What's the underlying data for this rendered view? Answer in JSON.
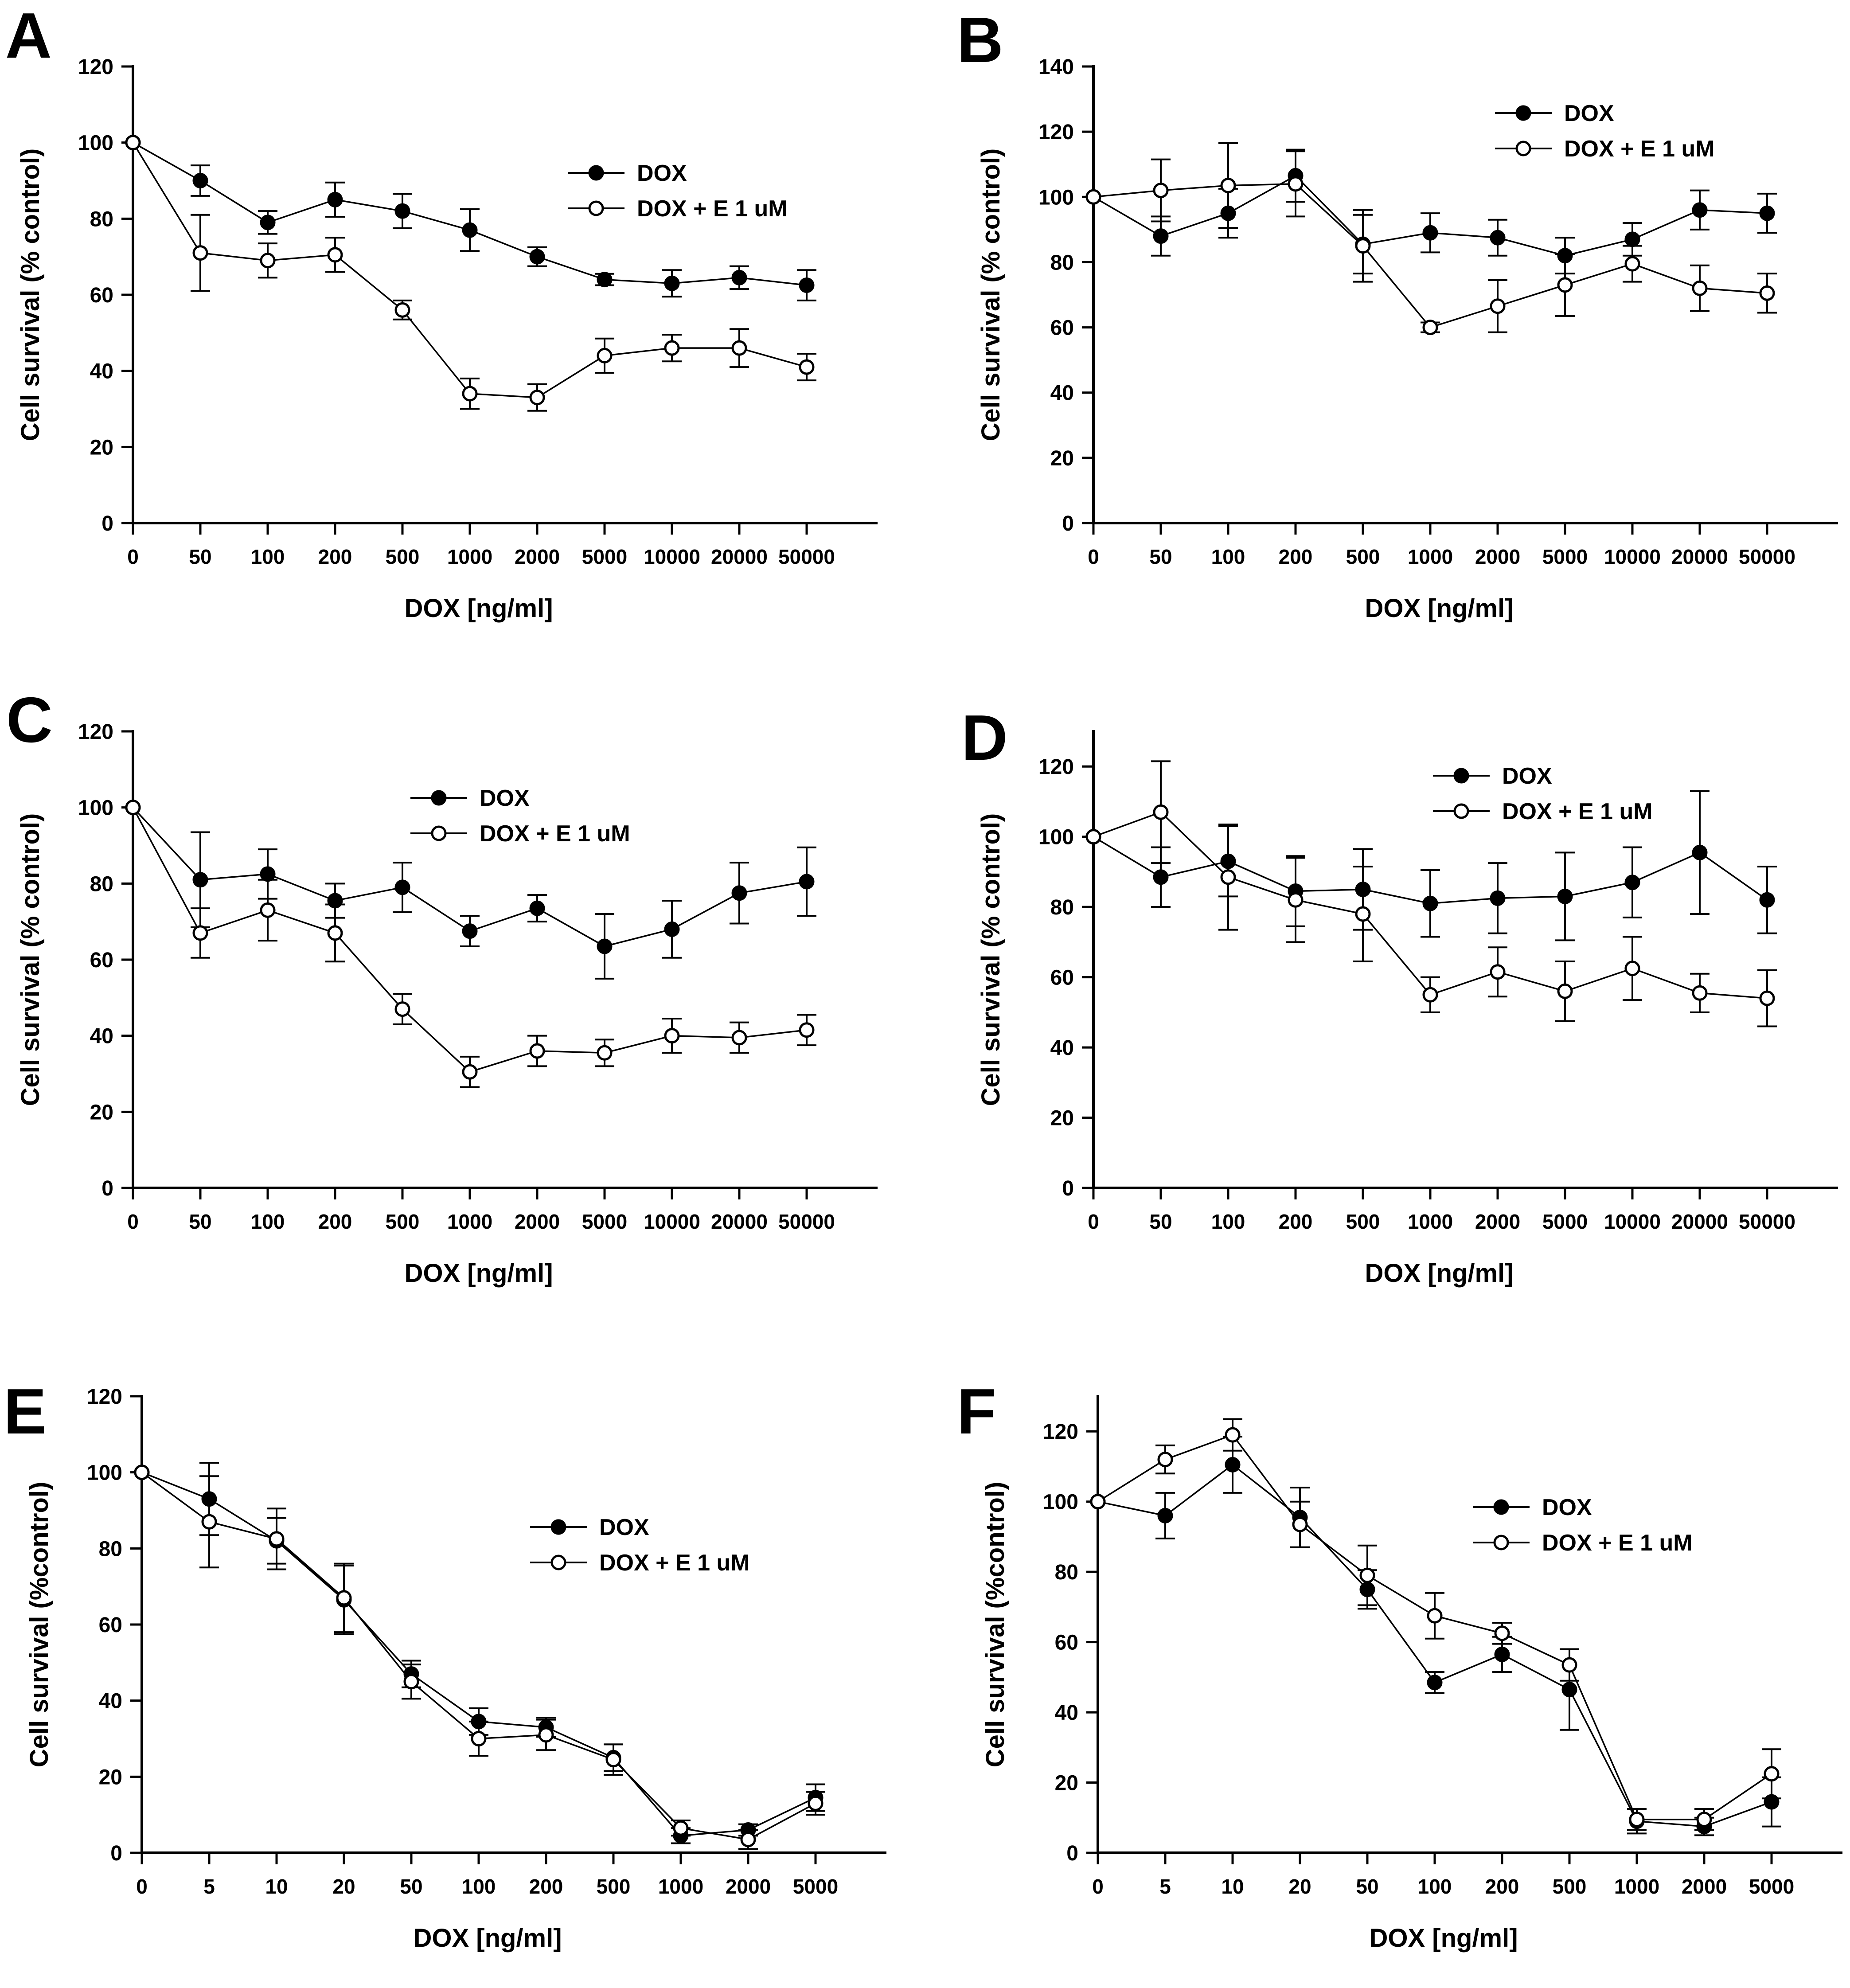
{
  "colors": {
    "foreground": "#000000",
    "background": "#ffffff"
  },
  "chart_data": [
    {
      "type": "line",
      "panel": "A",
      "xlabel": "DOX [ng/ml]",
      "ylabel": "Cell survival (% control)",
      "categories": [
        "0",
        "50",
        "100",
        "200",
        "500",
        "1000",
        "2000",
        "5000",
        "10000",
        "20000",
        "50000"
      ],
      "ylim": [
        0,
        120
      ],
      "yticks": [
        0,
        20,
        40,
        60,
        80,
        100,
        120
      ],
      "grid": false,
      "legend_position": "upper-right-inside",
      "series": [
        {
          "name": "DOX",
          "marker": "filled-circle",
          "values": [
            100,
            90,
            79,
            85,
            82,
            77,
            70,
            64,
            63,
            64.5,
            62.5
          ],
          "errors": [
            0,
            4,
            3,
            4.5,
            4.5,
            5.5,
            2.5,
            1.5,
            3.5,
            3,
            4
          ]
        },
        {
          "name": "DOX + E 1 uM",
          "marker": "open-circle",
          "values": [
            100,
            71,
            69,
            70.5,
            56,
            34,
            33,
            44,
            46,
            46,
            41
          ],
          "errors": [
            0,
            10,
            4.5,
            4.5,
            2.5,
            4,
            3.5,
            4.5,
            3.5,
            5,
            3.5
          ]
        }
      ]
    },
    {
      "type": "line",
      "panel": "B",
      "xlabel": "DOX [ng/ml]",
      "ylabel": "Cell survival (% control)",
      "categories": [
        "0",
        "50",
        "100",
        "200",
        "500",
        "1000",
        "2000",
        "5000",
        "10000",
        "20000",
        "50000"
      ],
      "ylim": [
        0,
        140
      ],
      "yticks": [
        0,
        20,
        40,
        60,
        80,
        100,
        120,
        140
      ],
      "grid": false,
      "legend_position": "upper-right-inside",
      "series": [
        {
          "name": "DOX",
          "marker": "filled-circle",
          "values": [
            100,
            88,
            95,
            106.5,
            85.5,
            89,
            87.5,
            82,
            87,
            96,
            95
          ],
          "errors": [
            0,
            6,
            7.5,
            8,
            9,
            6,
            5.5,
            5.5,
            5,
            6,
            6
          ]
        },
        {
          "name": "DOX + E 1 uM",
          "marker": "open-circle",
          "values": [
            100,
            102,
            103.5,
            104,
            85,
            60,
            66.5,
            73,
            79.5,
            72,
            70.5
          ],
          "errors": [
            0,
            9.5,
            13,
            10,
            11,
            1.5,
            8,
            9.5,
            5.5,
            7,
            6
          ]
        }
      ]
    },
    {
      "type": "line",
      "panel": "C",
      "xlabel": "DOX [ng/ml]",
      "ylabel": "Cell survival (% control)",
      "categories": [
        "0",
        "50",
        "100",
        "200",
        "500",
        "1000",
        "2000",
        "5000",
        "10000",
        "20000",
        "50000"
      ],
      "ylim": [
        0,
        120
      ],
      "yticks": [
        0,
        20,
        40,
        60,
        80,
        100,
        120
      ],
      "grid": false,
      "legend_position": "upper-center-inside",
      "series": [
        {
          "name": "DOX",
          "marker": "filled-circle",
          "values": [
            100,
            81,
            82.5,
            75.5,
            79,
            67.5,
            73.5,
            63.5,
            68,
            77.5,
            80.5
          ],
          "errors": [
            0,
            12.5,
            6.5,
            4.5,
            6.5,
            4,
            3.5,
            8.5,
            7.5,
            8,
            9
          ]
        },
        {
          "name": "DOX + E 1 uM",
          "marker": "open-circle",
          "values": [
            100,
            67,
            73,
            67,
            47,
            30.5,
            36,
            35.5,
            40,
            39.5,
            41.5
          ],
          "errors": [
            0,
            6.5,
            8,
            7.5,
            4,
            4,
            4,
            3.5,
            4.5,
            4,
            4
          ]
        }
      ]
    },
    {
      "type": "line",
      "panel": "D",
      "xlabel": "DOX [ng/ml]",
      "ylabel": "Cell survival (% control)",
      "categories": [
        "0",
        "50",
        "100",
        "200",
        "500",
        "1000",
        "2000",
        "5000",
        "10000",
        "20000",
        "50000"
      ],
      "ylim": [
        0,
        130
      ],
      "yticks": [
        0,
        20,
        40,
        60,
        80,
        100,
        120
      ],
      "grid": false,
      "legend_position": "upper-right-inside",
      "series": [
        {
          "name": "DOX",
          "marker": "filled-circle",
          "values": [
            100,
            88.5,
            93,
            84.5,
            85,
            81,
            82.5,
            83,
            87,
            95.5,
            82
          ],
          "errors": [
            0,
            8.5,
            10,
            10,
            11.5,
            9.5,
            10,
            12.5,
            10,
            17.5,
            9.5
          ]
        },
        {
          "name": "DOX + E 1 uM",
          "marker": "open-circle",
          "values": [
            100,
            107,
            88.5,
            82,
            78,
            55,
            61.5,
            56,
            62.5,
            55.5,
            54
          ],
          "errors": [
            0,
            14.5,
            15,
            12,
            13.5,
            5,
            7,
            8.5,
            9,
            5.5,
            8
          ]
        }
      ]
    },
    {
      "type": "line",
      "panel": "E",
      "xlabel": "DOX [ng/ml]",
      "ylabel": "Cell survival (%control)",
      "categories": [
        "0",
        "5",
        "10",
        "20",
        "50",
        "100",
        "200",
        "500",
        "1000",
        "2000",
        "5000"
      ],
      "ylim": [
        0,
        120
      ],
      "yticks": [
        0,
        20,
        40,
        60,
        80,
        100,
        120
      ],
      "grid": false,
      "legend_position": "middle-right-inside",
      "series": [
        {
          "name": "DOX",
          "marker": "filled-circle",
          "values": [
            100,
            93,
            82,
            66.5,
            47,
            34.5,
            33,
            25,
            4.5,
            6,
            14.5
          ],
          "errors": [
            0,
            9.5,
            6,
            9,
            3.5,
            3.5,
            2.5,
            3.5,
            2,
            1.5,
            3.5
          ]
        },
        {
          "name": "DOX + E 1 uM",
          "marker": "open-circle",
          "values": [
            100,
            87,
            82.5,
            67,
            45,
            30,
            31,
            24.5,
            6.5,
            3.5,
            13
          ],
          "errors": [
            0,
            12,
            8,
            9,
            4.5,
            4.5,
            4,
            4,
            2,
            2.5,
            3
          ]
        }
      ]
    },
    {
      "type": "line",
      "panel": "F",
      "xlabel": "DOX [ng/ml]",
      "ylabel": "Cell survival (%control)",
      "categories": [
        "0",
        "5",
        "10",
        "20",
        "50",
        "100",
        "200",
        "500",
        "1000",
        "2000",
        "5000"
      ],
      "ylim": [
        0,
        130
      ],
      "yticks": [
        0,
        20,
        40,
        60,
        80,
        100,
        120
      ],
      "grid": false,
      "legend_position": "middle-right-inside",
      "series": [
        {
          "name": "DOX",
          "marker": "filled-circle",
          "values": [
            100,
            96,
            110.5,
            95.5,
            75,
            48.5,
            56.5,
            46.5,
            9,
            7.5,
            14.5
          ],
          "errors": [
            0,
            6.5,
            8,
            8.5,
            5.5,
            3,
            5,
            11.5,
            3.5,
            2.5,
            7
          ]
        },
        {
          "name": "DOX + E 1 uM",
          "marker": "open-circle",
          "values": [
            100,
            112,
            119,
            93.5,
            79,
            67.5,
            62.5,
            53.5,
            9.5,
            9.5,
            22.5
          ],
          "errors": [
            0,
            4,
            4.5,
            6.5,
            8.5,
            6.5,
            3,
            4.5,
            3,
            3,
            7
          ]
        }
      ]
    }
  ]
}
